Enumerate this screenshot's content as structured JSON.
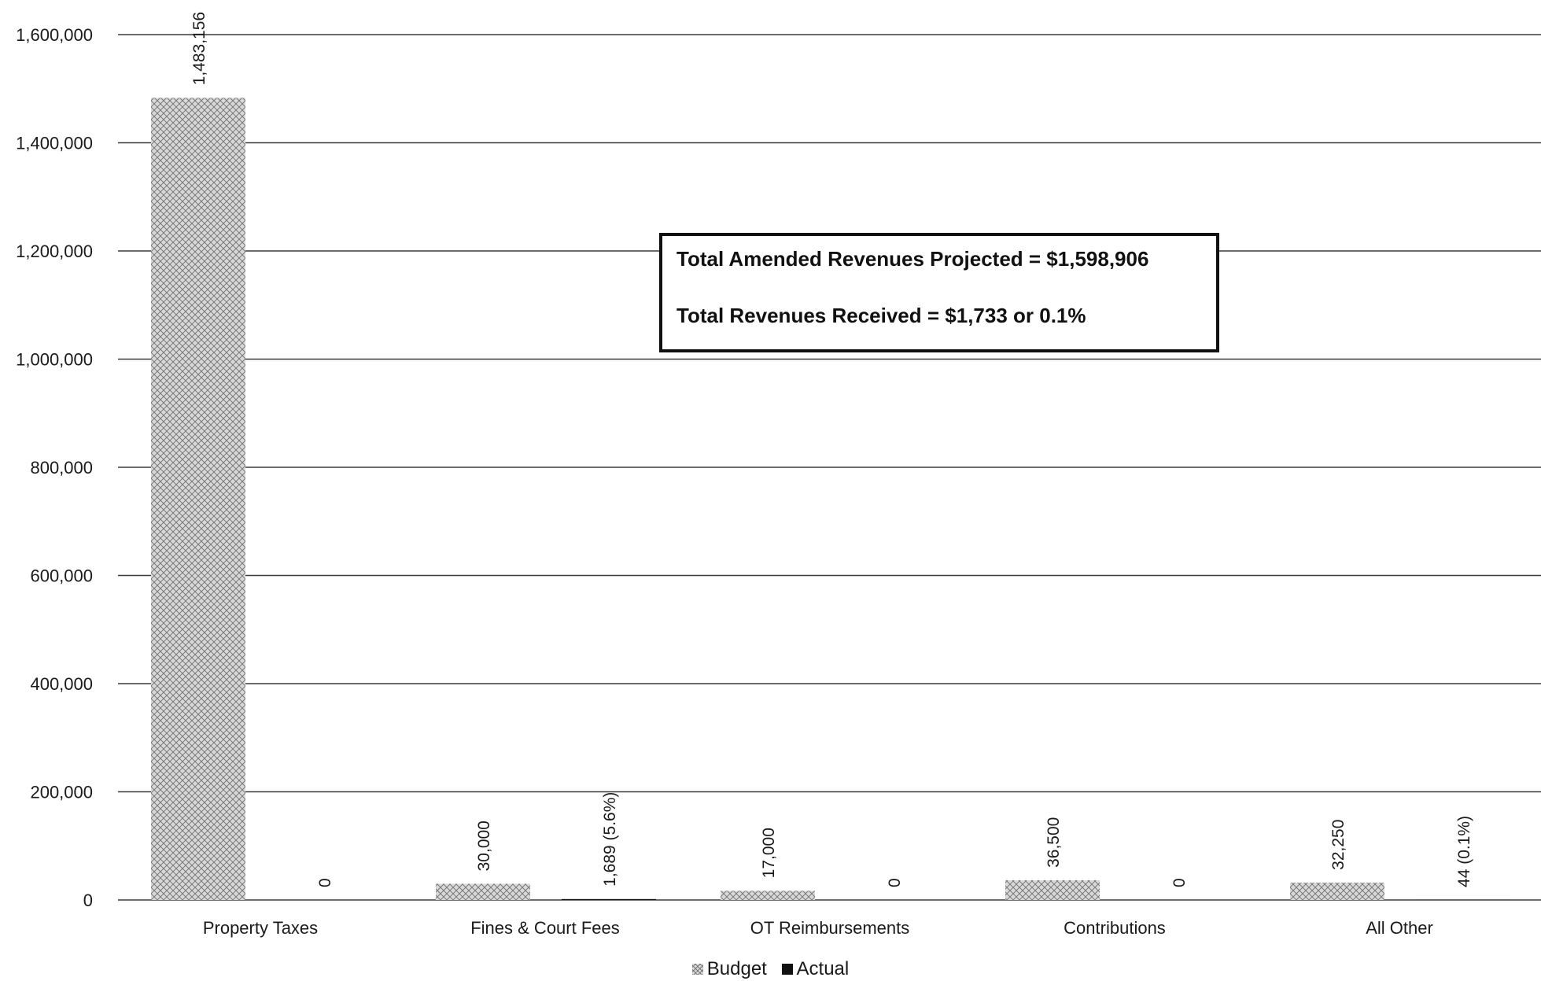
{
  "chart_data": {
    "type": "bar",
    "title": "",
    "xlabel": "",
    "ylabel": "",
    "categories": [
      "Property Taxes",
      "Fines & Court Fees",
      "OT Reimbursements",
      "Contributions",
      "All Other"
    ],
    "series": [
      {
        "name": "Budget",
        "values": [
          1483156,
          30000,
          17000,
          36500,
          32250
        ],
        "labels": [
          "1,483,156",
          "30,000",
          "17,000",
          "36,500",
          "32,250"
        ]
      },
      {
        "name": "Actual",
        "values": [
          0,
          1689,
          0,
          0,
          44
        ],
        "labels": [
          "0",
          "1,689  (5.6%)",
          "0",
          "0",
          "44  (0.1%)"
        ]
      }
    ],
    "ylim": [
      0,
      1600000
    ],
    "yticks": [
      0,
      200000,
      400000,
      600000,
      800000,
      1000000,
      1200000,
      1400000,
      1600000
    ],
    "ytick_labels": [
      "0",
      "200,000",
      "400,000",
      "600,000",
      "800,000",
      "1,000,000",
      "1,200,000",
      "1,400,000",
      "1,600,000"
    ],
    "grid": true,
    "legend_position": "bottom-center",
    "annotation": {
      "line1": "Total Amended Revenues Projected = $1,598,906",
      "line2": "Total Revenues Received = $1,733 or  0.1%"
    },
    "colors": {
      "budget": "#d9d9d9",
      "budget_hatch": "#7a7a7a",
      "actual": "#111111",
      "grid": "#3a3a3a"
    }
  },
  "legend": {
    "budget_label": "Budget",
    "actual_label": "Actual"
  }
}
